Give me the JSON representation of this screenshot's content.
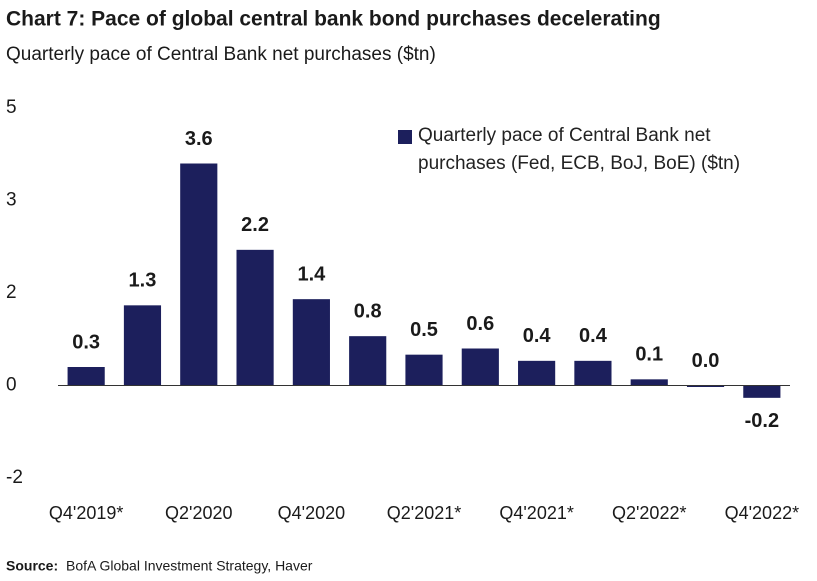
{
  "chart_data": {
    "type": "bar",
    "title": "Chart 7: Pace of global central bank bond purchases decelerating",
    "subtitle": "Quarterly pace of Central Bank net purchases ($tn)",
    "source_label": "Source:",
    "source": "BofA Global Investment Strategy, Haver",
    "categories": [
      "Q4'2019*",
      null,
      "Q2'2020",
      null,
      "Q4'2020",
      null,
      "Q2'2021*",
      null,
      "Q4'2021*",
      null,
      "Q2'2022*",
      null,
      "Q4'2022*"
    ],
    "series": [
      {
        "name": "Quarterly pace of Central Bank net purchases (Fed, ECB, BoJ, BoE) ($tn)",
        "color": "#1c1f5c",
        "values": [
          0.3,
          1.3,
          3.6,
          2.2,
          1.4,
          0.8,
          0.5,
          0.6,
          0.4,
          0.4,
          0.1,
          0.0,
          -0.2
        ],
        "value_labels": [
          "0.3",
          "1.3",
          "3.6",
          "2.2",
          "1.4",
          "0.8",
          "0.5",
          "0.6",
          "0.4",
          "0.4",
          "0.1",
          "0.0",
          "-0.2"
        ]
      }
    ],
    "ylim": [
      -1.5,
      4.5
    ],
    "yticks": [
      {
        "value": -1.5,
        "label": "-2"
      },
      0,
      {
        "value": 1.5,
        "label": "2"
      },
      3,
      {
        "value": 4.5,
        "label": "5"
      }
    ],
    "grid": false,
    "legend": "top-right"
  }
}
